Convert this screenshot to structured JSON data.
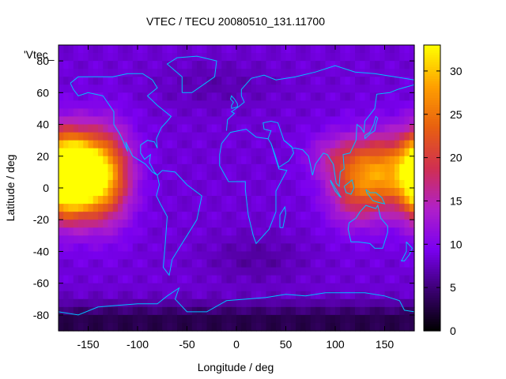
{
  "chart_data": {
    "type": "heatmap",
    "title": "VTEC / TECU 20080510_131.11700",
    "xlabel": "Longitude / deg",
    "ylabel": "Latitude / deg",
    "legend_label": "'Vtec_",
    "xlim": [
      -180,
      180
    ],
    "ylim": [
      -90,
      90
    ],
    "x_ticks": [
      "-150",
      "-100",
      "-50",
      "0",
      "50",
      "100",
      "150"
    ],
    "x_tick_values": [
      -150,
      -100,
      -50,
      0,
      50,
      100,
      150
    ],
    "y_ticks": [
      "80",
      "60",
      "40",
      "20",
      "0",
      "-20",
      "-40",
      "-60",
      "-80"
    ],
    "y_tick_values": [
      80,
      60,
      40,
      20,
      0,
      -20,
      -40,
      -60,
      -80
    ],
    "colorbar": {
      "range": [
        0,
        33
      ],
      "ticks": [
        "0",
        "5",
        "10",
        "15",
        "20",
        "25",
        "30"
      ],
      "tick_values": [
        0,
        5,
        10,
        15,
        20,
        25,
        30
      ],
      "palette": [
        "#000000",
        "#3a0070",
        "#7a00f0",
        "#b020c8",
        "#d03050",
        "#e86010",
        "#ffa000",
        "#ffff00"
      ]
    },
    "grid_step_deg": [
      5,
      5
    ],
    "blobs": [
      {
        "lon": -160,
        "lat": 8,
        "peak": 31,
        "sx": 20,
        "sy": 17
      },
      {
        "lon": -130,
        "lat": 8,
        "peak": 14,
        "sx": 18,
        "sy": 20
      },
      {
        "lon": 150,
        "lat": 10,
        "peak": 16,
        "sx": 25,
        "sy": 16
      },
      {
        "lon": 120,
        "lat": 0,
        "peak": 9,
        "sx": 20,
        "sy": 16
      },
      {
        "lon": 100,
        "lat": 20,
        "peak": 5,
        "sx": 20,
        "sy": 10
      },
      {
        "lon": -175,
        "lat": 8,
        "peak": 12,
        "sx": 12,
        "sy": 18
      }
    ],
    "background": {
      "base": 8.5,
      "polar_south": -5.5,
      "north_cap": -1.5,
      "mid_south_dip": -2.0
    }
  },
  "coastline_color": "#00c0ff"
}
